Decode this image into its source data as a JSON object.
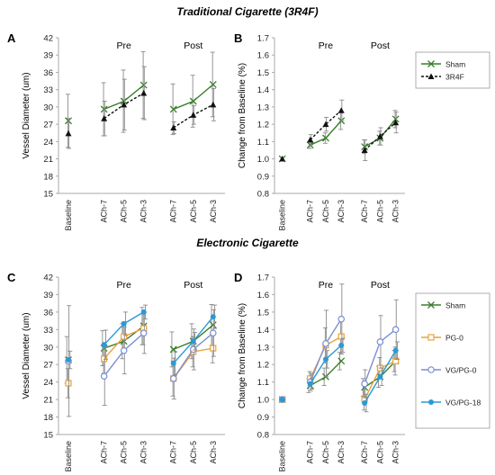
{
  "section_titles": {
    "top": "Traditional Cigarette (3R4F)",
    "bottom": "Electronic Cigarette"
  },
  "colors": {
    "sham": "#3a7d2c",
    "r3r4f": "#111111",
    "pg0": "#e8a33c",
    "vgpg0": "#7b8fd4",
    "vgpg18": "#2a9ad6",
    "error_bar": "#8a8a8a",
    "axis": "#aaaaaa"
  },
  "chart_data": [
    {
      "panel": "A",
      "type": "line",
      "ylabel": "Vessel Diameter (um)",
      "xlabel": "",
      "categories": [
        "Baseline",
        "ACh-7",
        "ACh-5",
        "ACh-3",
        "ACh-7",
        "ACh-5",
        "ACh-3"
      ],
      "group_labels": [
        "Pre",
        "Post"
      ],
      "ylim": [
        15,
        42
      ],
      "yticks": [
        15,
        18,
        21,
        24,
        27,
        30,
        33,
        36,
        39,
        42
      ],
      "y_decimals": 0,
      "legend": "none",
      "series": [
        {
          "key": "sham",
          "marker": "x",
          "dashed": false,
          "values": [
            27.6,
            29.6,
            31.0,
            33.8,
            29.6,
            31.0,
            33.9
          ],
          "errors": [
            4.6,
            4.6,
            5.4,
            5.8,
            4.4,
            4.5,
            5.6
          ]
        },
        {
          "key": "r3r4f",
          "marker": "triangle",
          "dashed": true,
          "values": [
            25.4,
            28.0,
            30.4,
            32.4,
            26.4,
            28.6,
            30.4
          ],
          "errors": [
            2.6,
            3.0,
            4.4,
            4.6,
            1.0,
            1.6,
            2.8
          ]
        }
      ]
    },
    {
      "panel": "B",
      "type": "line",
      "ylabel": "Change from Baseline (%)",
      "xlabel": "",
      "categories": [
        "Baseline",
        "ACh-7",
        "ACh-5",
        "ACh-3",
        "ACh-7",
        "ACh-5",
        "ACh-3"
      ],
      "group_labels": [
        "Pre",
        "Post"
      ],
      "ylim": [
        0.8,
        1.7
      ],
      "yticks": [
        0.8,
        0.9,
        1.0,
        1.1,
        1.2,
        1.3,
        1.4,
        1.5,
        1.6,
        1.7
      ],
      "y_decimals": 1,
      "legend": "right",
      "series": [
        {
          "key": "sham",
          "name": "Sham",
          "marker": "x",
          "dashed": false,
          "values": [
            1.0,
            1.08,
            1.12,
            1.22,
            1.07,
            1.12,
            1.23
          ],
          "errors": [
            0.0,
            0.02,
            0.03,
            0.05,
            0.04,
            0.04,
            0.05
          ]
        },
        {
          "key": "r3r4f",
          "name": "3R4F",
          "marker": "triangle",
          "dashed": true,
          "values": [
            1.0,
            1.11,
            1.2,
            1.28,
            1.05,
            1.13,
            1.21
          ],
          "errors": [
            0.0,
            0.03,
            0.04,
            0.06,
            0.06,
            0.05,
            0.06
          ]
        }
      ]
    },
    {
      "panel": "C",
      "type": "line",
      "ylabel": "Vessel Diameter (um)",
      "xlabel": "",
      "categories": [
        "Baseline",
        "ACh-7",
        "ACh-5",
        "ACh-3",
        "ACh-7",
        "ACh-5",
        "ACh-3"
      ],
      "group_labels": [
        "Pre",
        "Post"
      ],
      "ylim": [
        15,
        42
      ],
      "yticks": [
        15,
        18,
        21,
        24,
        27,
        30,
        33,
        36,
        39,
        42
      ],
      "y_decimals": 0,
      "legend": "none",
      "series": [
        {
          "key": "sham",
          "marker": "x",
          "dashed": false,
          "values": [
            27.8,
            29.8,
            31.0,
            33.6,
            29.6,
            31.0,
            33.8
          ],
          "errors": [
            4.0,
            3.0,
            3.0,
            3.2,
            3.0,
            3.0,
            3.5
          ]
        },
        {
          "key": "pg0",
          "marker": "square",
          "dashed": false,
          "values": [
            23.8,
            28.0,
            31.8,
            33.2,
            24.6,
            29.2,
            29.8
          ],
          "errors": [
            2.5,
            2.5,
            2.5,
            2.8,
            3.0,
            2.6,
            2.5
          ]
        },
        {
          "key": "vgpg0",
          "marker": "circle",
          "dashed": false,
          "values": [
            27.6,
            25.0,
            29.4,
            32.4,
            24.6,
            29.6,
            32.4
          ],
          "errors": [
            9.5,
            5.0,
            4.0,
            3.5,
            3.5,
            3.5,
            4.0
          ]
        },
        {
          "key": "vgpg18",
          "marker": "dot",
          "dashed": false,
          "values": [
            27.8,
            30.4,
            34.0,
            36.0,
            27.2,
            31.0,
            35.2
          ],
          "errors": [
            1.5,
            2.5,
            2.0,
            1.2,
            2.0,
            1.5,
            2.0
          ]
        }
      ]
    },
    {
      "panel": "D",
      "type": "line",
      "ylabel": "Change from Baseline (%)",
      "xlabel": "",
      "categories": [
        "Baseline",
        "ACh-7",
        "ACh-5",
        "ACh-3",
        "ACh-7",
        "ACh-5",
        "ACh-3"
      ],
      "group_labels": [
        "Pre",
        "Post"
      ],
      "ylim": [
        0.8,
        1.7
      ],
      "yticks": [
        0.8,
        0.9,
        1.0,
        1.1,
        1.2,
        1.3,
        1.4,
        1.5,
        1.6,
        1.7
      ],
      "y_decimals": 1,
      "legend": "right",
      "series": [
        {
          "key": "sham",
          "name": "Sham",
          "marker": "x",
          "dashed": false,
          "values": [
            1.0,
            1.08,
            1.13,
            1.22,
            1.07,
            1.13,
            1.22
          ],
          "errors": [
            0.0,
            0.04,
            0.05,
            0.05,
            0.05,
            0.06,
            0.06
          ]
        },
        {
          "key": "pg0",
          "name": "PG-0",
          "marker": "square",
          "dashed": false,
          "values": [
            1.0,
            1.12,
            1.31,
            1.36,
            1.0,
            1.18,
            1.22
          ],
          "errors": [
            0.0,
            0.04,
            0.1,
            0.1,
            0.06,
            0.06,
            0.08
          ]
        },
        {
          "key": "vgpg0",
          "name": "VG/PG-0",
          "marker": "circle",
          "dashed": false,
          "values": [
            1.0,
            1.1,
            1.32,
            1.46,
            1.09,
            1.33,
            1.4
          ],
          "errors": [
            0.0,
            0.05,
            0.19,
            0.2,
            0.08,
            0.15,
            0.17
          ]
        },
        {
          "key": "vgpg18",
          "name": "VG/PG-18",
          "marker": "dot",
          "dashed": false,
          "values": [
            1.0,
            1.09,
            1.23,
            1.31,
            0.98,
            1.13,
            1.28
          ],
          "errors": [
            0.0,
            0.03,
            0.05,
            0.04,
            0.05,
            0.05,
            0.05
          ]
        }
      ]
    }
  ]
}
